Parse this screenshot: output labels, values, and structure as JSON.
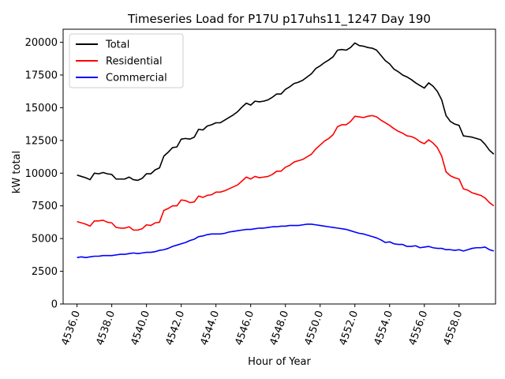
{
  "chart_data": {
    "type": "line",
    "title": "Timeseries Load for P17U p17uhs11_1247  Day 190",
    "xlabel": "Hour of Year",
    "ylabel": "kW total",
    "xlim": [
      4535.2,
      4560.1
    ],
    "ylim": [
      0,
      21000
    ],
    "xticks": [
      4536,
      4538,
      4540,
      4542,
      4544,
      4546,
      4548,
      4550,
      4552,
      4554,
      4556,
      4558
    ],
    "xtick_labels": [
      "4536.0",
      "4538.0",
      "4540.0",
      "4542.0",
      "4544.0",
      "4546.0",
      "4548.0",
      "4550.0",
      "4552.0",
      "4554.0",
      "4556.0",
      "4558.0"
    ],
    "yticks": [
      0,
      2500,
      5000,
      7500,
      10000,
      12500,
      15000,
      17500,
      20000
    ],
    "ytick_labels": [
      "0",
      "2500",
      "5000",
      "7500",
      "10000",
      "12500",
      "15000",
      "17500",
      "20000"
    ],
    "grid": false,
    "legend_position": "top-left",
    "x_start": 4536,
    "x_step": 0.25,
    "series": [
      {
        "name": "Total",
        "color": "#000000",
        "values": [
          9850,
          9750,
          9650,
          9500,
          10000,
          9950,
          10050,
          9950,
          9900,
          9550,
          9550,
          9550,
          9700,
          9500,
          9450,
          9600,
          9950,
          9950,
          10250,
          10400,
          11300,
          11600,
          11950,
          12000,
          12600,
          12650,
          12600,
          12750,
          13350,
          13300,
          13600,
          13700,
          13850,
          13850,
          14050,
          14250,
          14450,
          14700,
          15050,
          15350,
          15200,
          15500,
          15450,
          15500,
          15600,
          15800,
          16050,
          16050,
          16400,
          16600,
          16850,
          16950,
          17100,
          17350,
          17600,
          18000,
          18200,
          18450,
          18650,
          18900,
          19400,
          19450,
          19400,
          19600,
          19950,
          19750,
          19700,
          19600,
          19550,
          19400,
          19000,
          18600,
          18350,
          17950,
          17750,
          17500,
          17350,
          17150,
          16900,
          16700,
          16500,
          16900,
          16650,
          16250,
          15600,
          14400,
          13950,
          13750,
          13650,
          12850,
          12800,
          12750,
          12650,
          12550,
          12200,
          11750,
          11450
        ]
      },
      {
        "name": "Residential",
        "color": "#ff0000",
        "values": [
          6300,
          6200,
          6100,
          5950,
          6350,
          6350,
          6400,
          6250,
          6200,
          5850,
          5800,
          5800,
          5900,
          5650,
          5650,
          5750,
          6050,
          6000,
          6200,
          6250,
          7150,
          7300,
          7500,
          7500,
          7950,
          7900,
          7750,
          7800,
          8250,
          8150,
          8300,
          8350,
          8550,
          8550,
          8650,
          8800,
          8950,
          9100,
          9400,
          9700,
          9550,
          9750,
          9650,
          9700,
          9750,
          9900,
          10150,
          10150,
          10450,
          10600,
          10850,
          10950,
          11050,
          11250,
          11450,
          11850,
          12150,
          12450,
          12650,
          12950,
          13550,
          13700,
          13700,
          13950,
          14350,
          14300,
          14250,
          14350,
          14400,
          14300,
          14050,
          13850,
          13650,
          13400,
          13200,
          13050,
          12850,
          12800,
          12650,
          12400,
          12250,
          12550,
          12300,
          11950,
          11300,
          10100,
          9800,
          9650,
          9550,
          8800,
          8700,
          8500,
          8400,
          8300,
          8100,
          7750,
          7500
        ]
      },
      {
        "name": "Commercial",
        "color": "#0000ff",
        "values": [
          3550,
          3600,
          3550,
          3600,
          3650,
          3650,
          3700,
          3700,
          3700,
          3750,
          3800,
          3800,
          3850,
          3900,
          3850,
          3900,
          3950,
          3950,
          4000,
          4100,
          4150,
          4250,
          4400,
          4500,
          4600,
          4700,
          4850,
          4950,
          5150,
          5200,
          5300,
          5350,
          5350,
          5350,
          5400,
          5500,
          5550,
          5600,
          5650,
          5700,
          5700,
          5750,
          5800,
          5800,
          5850,
          5900,
          5900,
          5950,
          5950,
          6000,
          6000,
          6000,
          6050,
          6100,
          6100,
          6050,
          6000,
          5950,
          5900,
          5850,
          5800,
          5750,
          5700,
          5600,
          5500,
          5400,
          5350,
          5250,
          5150,
          5050,
          4900,
          4700,
          4750,
          4600,
          4550,
          4550,
          4400,
          4400,
          4450,
          4300,
          4350,
          4400,
          4300,
          4250,
          4250,
          4150,
          4150,
          4100,
          4150,
          4050,
          4150,
          4250,
          4300,
          4300,
          4350,
          4150,
          4050
        ]
      }
    ]
  }
}
